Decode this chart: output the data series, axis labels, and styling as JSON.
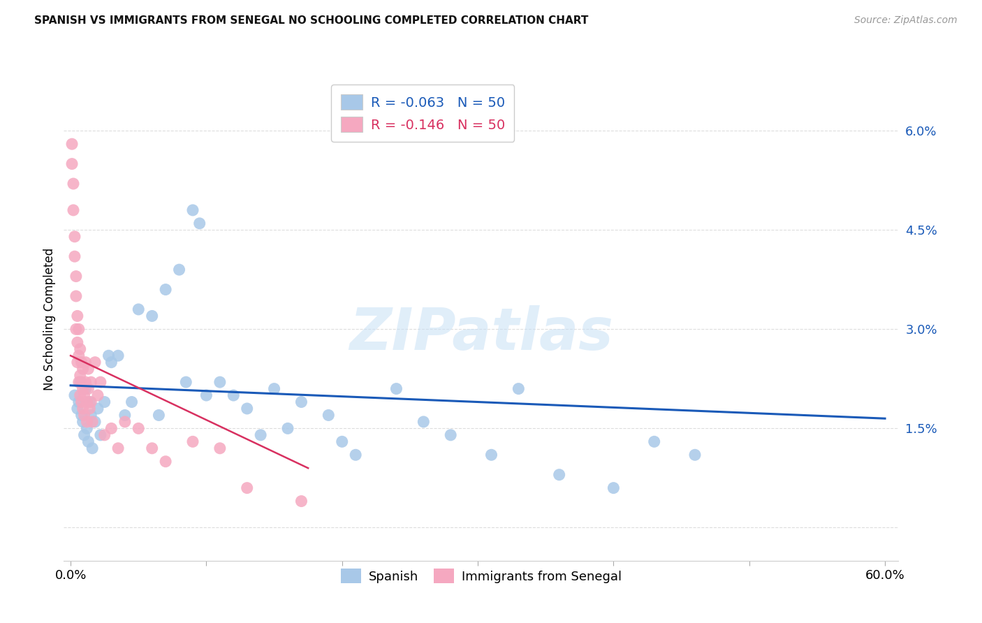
{
  "title": "SPANISH VS IMMIGRANTS FROM SENEGAL NO SCHOOLING COMPLETED CORRELATION CHART",
  "source": "Source: ZipAtlas.com",
  "ylabel": "No Schooling Completed",
  "xlim": [
    -0.005,
    0.61
  ],
  "ylim": [
    -0.005,
    0.068
  ],
  "yticks": [
    0.0,
    0.015,
    0.03,
    0.045,
    0.06
  ],
  "ytick_labels": [
    "",
    "1.5%",
    "3.0%",
    "4.5%",
    "6.0%"
  ],
  "xticks": [
    0.0,
    0.1,
    0.2,
    0.3,
    0.4,
    0.5,
    0.6
  ],
  "xtick_labels": [
    "0.0%",
    "",
    "",
    "",
    "",
    "",
    "60.0%"
  ],
  "legend_r1": "R = -0.063",
  "legend_n1": "N = 50",
  "legend_r2": "R = -0.146",
  "legend_n2": "N = 50",
  "color_spanish": "#a8c8e8",
  "color_senegal": "#f5a8c0",
  "color_line_spanish": "#1a5ab8",
  "color_line_senegal": "#d83060",
  "watermark_color": "#c8e0f5",
  "sp_x": [
    0.003,
    0.005,
    0.006,
    0.007,
    0.008,
    0.009,
    0.01,
    0.011,
    0.012,
    0.013,
    0.014,
    0.015,
    0.016,
    0.018,
    0.02,
    0.022,
    0.025,
    0.028,
    0.03,
    0.035,
    0.04,
    0.045,
    0.05,
    0.06,
    0.065,
    0.07,
    0.08,
    0.085,
    0.09,
    0.095,
    0.1,
    0.11,
    0.12,
    0.13,
    0.14,
    0.15,
    0.16,
    0.17,
    0.19,
    0.2,
    0.21,
    0.24,
    0.26,
    0.28,
    0.31,
    0.33,
    0.36,
    0.4,
    0.43,
    0.46
  ],
  "sp_y": [
    0.02,
    0.018,
    0.019,
    0.022,
    0.017,
    0.016,
    0.014,
    0.021,
    0.015,
    0.013,
    0.019,
    0.017,
    0.012,
    0.016,
    0.018,
    0.014,
    0.019,
    0.026,
    0.025,
    0.026,
    0.017,
    0.019,
    0.033,
    0.032,
    0.017,
    0.036,
    0.039,
    0.022,
    0.048,
    0.046,
    0.02,
    0.022,
    0.02,
    0.018,
    0.014,
    0.021,
    0.015,
    0.019,
    0.017,
    0.013,
    0.011,
    0.021,
    0.016,
    0.014,
    0.011,
    0.021,
    0.008,
    0.006,
    0.013,
    0.011
  ],
  "sn_x": [
    0.001,
    0.001,
    0.002,
    0.002,
    0.003,
    0.003,
    0.004,
    0.004,
    0.004,
    0.005,
    0.005,
    0.005,
    0.006,
    0.006,
    0.006,
    0.007,
    0.007,
    0.007,
    0.008,
    0.008,
    0.008,
    0.009,
    0.009,
    0.009,
    0.01,
    0.01,
    0.011,
    0.011,
    0.012,
    0.012,
    0.013,
    0.013,
    0.014,
    0.015,
    0.015,
    0.016,
    0.018,
    0.02,
    0.022,
    0.025,
    0.03,
    0.035,
    0.04,
    0.05,
    0.06,
    0.07,
    0.09,
    0.11,
    0.13,
    0.17
  ],
  "sn_y": [
    0.058,
    0.055,
    0.052,
    0.048,
    0.044,
    0.041,
    0.038,
    0.035,
    0.03,
    0.032,
    0.028,
    0.025,
    0.03,
    0.026,
    0.022,
    0.027,
    0.023,
    0.02,
    0.025,
    0.022,
    0.019,
    0.024,
    0.021,
    0.018,
    0.02,
    0.017,
    0.025,
    0.022,
    0.019,
    0.016,
    0.024,
    0.021,
    0.018,
    0.022,
    0.019,
    0.016,
    0.025,
    0.02,
    0.022,
    0.014,
    0.015,
    0.012,
    0.016,
    0.015,
    0.012,
    0.01,
    0.013,
    0.012,
    0.006,
    0.004
  ],
  "sp_line_x": [
    0.0,
    0.6
  ],
  "sp_line_y": [
    0.0215,
    0.0165
  ],
  "sn_line_x": [
    0.0,
    0.175
  ],
  "sn_line_y": [
    0.026,
    0.009
  ]
}
